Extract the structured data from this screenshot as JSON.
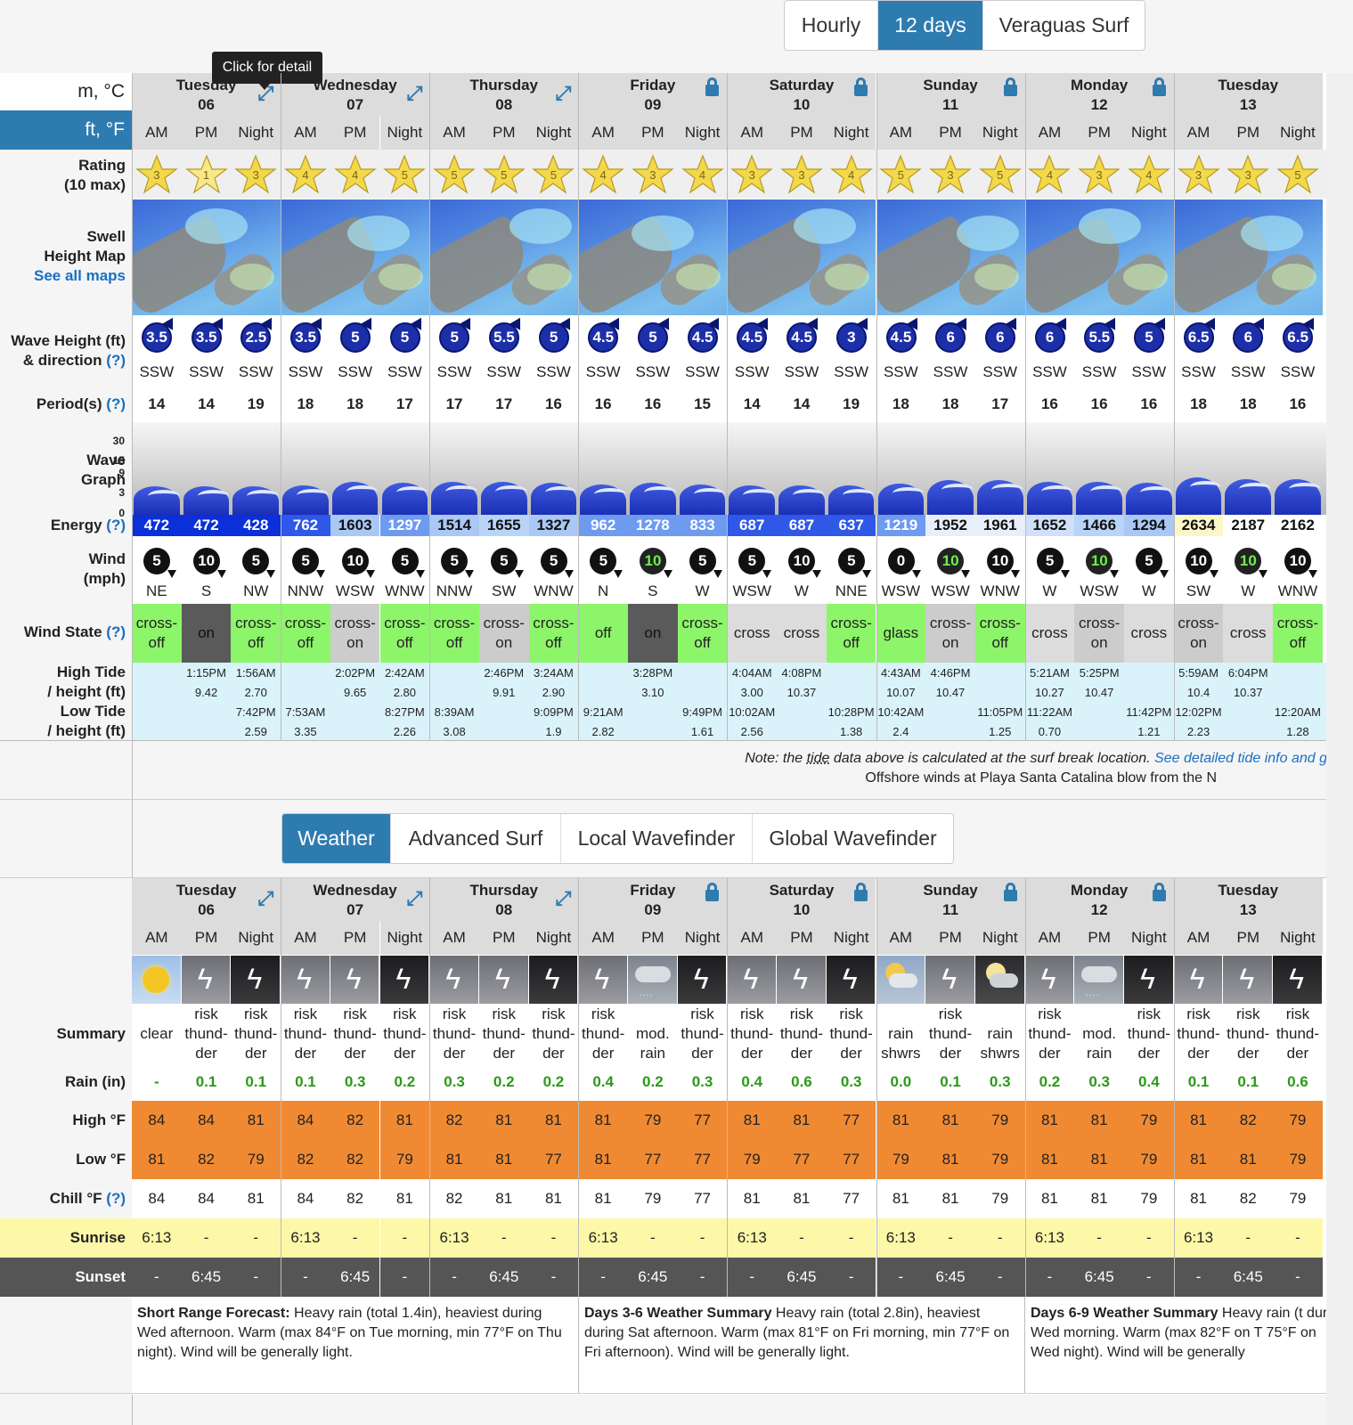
{
  "view_tabs": [
    {
      "label": "Hourly",
      "active": false
    },
    {
      "label": "12 days",
      "active": true
    },
    {
      "label": "Veraguas Surf",
      "active": false
    }
  ],
  "tooltip": "Click for detail",
  "units": {
    "metric": "m, °C",
    "imperial": "ft, °F"
  },
  "segments": [
    "AM",
    "PM",
    "Night"
  ],
  "days": [
    {
      "name": "Tuesday",
      "date": "06",
      "icon": "expand"
    },
    {
      "name": "Wednesday",
      "date": "07",
      "icon": "expand"
    },
    {
      "name": "Thursday",
      "date": "08",
      "icon": "expand"
    },
    {
      "name": "Friday",
      "date": "09",
      "icon": "lock"
    },
    {
      "name": "Saturday",
      "date": "10",
      "icon": "lock"
    },
    {
      "name": "Sunday",
      "date": "11",
      "icon": "lock"
    },
    {
      "name": "Monday",
      "date": "12",
      "icon": "lock"
    },
    {
      "name": "Tuesday",
      "date": "13",
      "icon": "none"
    }
  ],
  "labels": {
    "rating": [
      "Rating",
      "(10 max)"
    ],
    "swell_map": [
      "Swell",
      "Height Map",
      "See all maps"
    ],
    "wave_height": [
      "Wave Height (ft)",
      "& direction"
    ],
    "help": "(?)",
    "period": "Period(s)",
    "wave_graph": [
      "Wave",
      "Graph"
    ],
    "graph_ticks": [
      "30",
      "15",
      "9",
      "3",
      "0"
    ],
    "energy": "Energy",
    "wind": [
      "Wind",
      "(mph)"
    ],
    "wind_state": "Wind State",
    "tide": [
      "High Tide",
      "/ height (ft)",
      "Low Tide",
      "/ height (ft)"
    ],
    "summary": "Summary",
    "rain": "Rain (in)",
    "high": "High °F",
    "low": "Low °F",
    "chill": "Chill °F",
    "sunrise": "Sunrise",
    "sunset": "Sunset"
  },
  "ratings": [
    3,
    1,
    3,
    4,
    4,
    5,
    5,
    5,
    5,
    4,
    3,
    4,
    3,
    3,
    4,
    5,
    3,
    5,
    4,
    3,
    4,
    3,
    3,
    5
  ],
  "wave_heights": [
    "3.5",
    "3.5",
    "2.5",
    "3.5",
    "5",
    "5",
    "5",
    "5.5",
    "5",
    "4.5",
    "5",
    "4.5",
    "4.5",
    "4.5",
    "3",
    "4.5",
    "6",
    "6",
    "6",
    "5.5",
    "5",
    "6.5",
    "6",
    "6.5"
  ],
  "wave_dirs": [
    "SSW",
    "SSW",
    "SSW",
    "SSW",
    "SSW",
    "SSW",
    "SSW",
    "SSW",
    "SSW",
    "SSW",
    "SSW",
    "SSW",
    "SSW",
    "SSW",
    "SSW",
    "SSW",
    "SSW",
    "SSW",
    "SSW",
    "SSW",
    "SSW",
    "SSW",
    "SSW",
    "SSW"
  ],
  "periods": [
    "14",
    "14",
    "19",
    "18",
    "18",
    "17",
    "17",
    "17",
    "16",
    "16",
    "16",
    "15",
    "14",
    "14",
    "19",
    "18",
    "18",
    "17",
    "16",
    "16",
    "16",
    "18",
    "18",
    "16"
  ],
  "energy": [
    "472",
    "472",
    "428",
    "762",
    "1603",
    "1297",
    "1514",
    "1655",
    "1327",
    "962",
    "1278",
    "833",
    "687",
    "687",
    "637",
    "1219",
    "1952",
    "1961",
    "1652",
    "1466",
    "1294",
    "2634",
    "2187",
    "2162"
  ],
  "energy_colors": [
    "#0b2fd8",
    "#0b2fd8",
    "#0b2fd8",
    "#2f57e8",
    "#a9c8f5",
    "#6e9af0",
    "#a9c8f5",
    "#b8d4f7",
    "#a9c8f5",
    "#6e9af0",
    "#6e9af0",
    "#6e9af0",
    "#2f57e8",
    "#2f57e8",
    "#2f57e8",
    "#6e9af0",
    "#e8eefa",
    "#e8eefa",
    "#cfe0f8",
    "#b8d4f7",
    "#a9c8f5",
    "#fdf7c8",
    "#ffffff",
    "#ffffff"
  ],
  "wind_speeds": [
    "5",
    "10",
    "5",
    "5",
    "10",
    "5",
    "5",
    "5",
    "5",
    "5",
    "10",
    "5",
    "5",
    "10",
    "5",
    "0",
    "10",
    "10",
    "5",
    "10",
    "5",
    "10",
    "10",
    "10"
  ],
  "wind_dirs": [
    "NE",
    "S",
    "NW",
    "NNW",
    "WSW",
    "WNW",
    "NNW",
    "SW",
    "WNW",
    "N",
    "S",
    "W",
    "WSW",
    "W",
    "NNE",
    "WSW",
    "WSW",
    "WNW",
    "W",
    "WSW",
    "W",
    "SW",
    "W",
    "WNW"
  ],
  "wind_green": [
    false,
    false,
    false,
    false,
    false,
    false,
    false,
    false,
    false,
    false,
    true,
    false,
    false,
    false,
    false,
    false,
    true,
    false,
    false,
    true,
    false,
    false,
    true,
    false
  ],
  "wind_state": [
    {
      "text": "cross-off",
      "c": "#8df56a"
    },
    {
      "text": "on",
      "c": "#5a5a5a"
    },
    {
      "text": "cross-off",
      "c": "#8df56a"
    },
    {
      "text": "cross-off",
      "c": "#8df56a"
    },
    {
      "text": "cross-on",
      "c": "#cccccc"
    },
    {
      "text": "cross-off",
      "c": "#8df56a"
    },
    {
      "text": "cross-off",
      "c": "#8df56a"
    },
    {
      "text": "cross-on",
      "c": "#cccccc"
    },
    {
      "text": "cross-off",
      "c": "#8df56a"
    },
    {
      "text": "off",
      "c": "#8df56a"
    },
    {
      "text": "on",
      "c": "#5a5a5a"
    },
    {
      "text": "cross-off",
      "c": "#8df56a"
    },
    {
      "text": "cross",
      "c": "#dcdcdc"
    },
    {
      "text": "cross",
      "c": "#dcdcdc"
    },
    {
      "text": "cross-off",
      "c": "#8df56a"
    },
    {
      "text": "glass",
      "c": "#8df56a"
    },
    {
      "text": "cross-on",
      "c": "#cccccc"
    },
    {
      "text": "cross-off",
      "c": "#8df56a"
    },
    {
      "text": "cross",
      "c": "#dcdcdc"
    },
    {
      "text": "cross-on",
      "c": "#cccccc"
    },
    {
      "text": "cross",
      "c": "#dcdcdc"
    },
    {
      "text": "cross-on",
      "c": "#cccccc"
    },
    {
      "text": "cross",
      "c": "#dcdcdc"
    },
    {
      "text": "cross-off",
      "c": "#8df56a"
    }
  ],
  "tides": [
    {
      "high": [
        "",
        "",
        "1:15PM",
        "9.42",
        "1:56AM",
        "2.70"
      ],
      "low": [
        "",
        "",
        "",
        "",
        "7:42PM",
        "2.59"
      ]
    },
    {
      "high": [
        "",
        "",
        "2:02PM",
        "9.65",
        "2:42AM",
        "2.80"
      ],
      "low": [
        "7:53AM",
        "3.35",
        "",
        "",
        "8:27PM",
        "2.26"
      ]
    },
    {
      "high": [
        "",
        "",
        "2:46PM",
        "9.91",
        "3:24AM",
        "2.90"
      ],
      "low": [
        "8:39AM",
        "3.08",
        "",
        "",
        "9:09PM",
        "1.9"
      ]
    },
    {
      "high": [
        "",
        "",
        "3:28PM",
        "3.10",
        "",
        ""
      ],
      "low": [
        "9:21AM",
        "2.82",
        "",
        "",
        "9:49PM",
        "1.61"
      ]
    },
    {
      "high": [
        "4:04AM",
        "3.00",
        "4:08PM",
        "10.37",
        "",
        ""
      ],
      "low": [
        "10:02AM",
        "2.56",
        "",
        "",
        "10:28PM",
        "1.38"
      ]
    },
    {
      "high": [
        "4:43AM",
        "10.07",
        "4:46PM",
        "10.47",
        "",
        ""
      ],
      "low": [
        "10:42AM",
        "2.4",
        "",
        "",
        "11:05PM",
        "1.25"
      ]
    },
    {
      "high": [
        "5:21AM",
        "10.27",
        "5:25PM",
        "10.47",
        "",
        ""
      ],
      "low": [
        "11:22AM",
        "0.70",
        "",
        "",
        "11:42PM",
        "1.21"
      ]
    },
    {
      "high": [
        "5:59AM",
        "10.4",
        "6:04PM",
        "10.37",
        "",
        ""
      ],
      "low": [
        "12:02PM",
        "2.23",
        "",
        "",
        "12:20AM",
        "1.28"
      ]
    }
  ],
  "note": {
    "prefix": "Note: the ",
    "tide": "tide",
    "mid": " data above is calculated at the surf break location. ",
    "link": "See detailed tide info and g",
    "offshore": "Offshore winds at Playa Santa Catalina blow from the N"
  },
  "weather_tabs": [
    {
      "label": "Weather",
      "active": true
    },
    {
      "label": "Advanced Surf",
      "active": false
    },
    {
      "label": "Local Wavefinder",
      "active": false
    },
    {
      "label": "Global Wavefinder",
      "active": false
    }
  ],
  "weather_icons": [
    "sun",
    "storm",
    "storm-night",
    "storm",
    "storm",
    "storm-night",
    "storm",
    "storm",
    "storm-night",
    "storm",
    "rain",
    "storm-night",
    "storm",
    "storm",
    "storm-night",
    "sun-cloud",
    "storm",
    "moon-cloud",
    "storm",
    "rain",
    "storm-night",
    "storm",
    "storm",
    "storm-night"
  ],
  "summary": [
    [
      "",
      "clear",
      ""
    ],
    [
      "risk",
      "thund-",
      "der"
    ],
    [
      "risk",
      "thund-",
      "der"
    ],
    [
      "risk",
      "thund-",
      "der"
    ],
    [
      "risk",
      "thund-",
      "der"
    ],
    [
      "risk",
      "thund-",
      "der"
    ],
    [
      "risk",
      "thund-",
      "der"
    ],
    [
      "risk",
      "thund-",
      "der"
    ],
    [
      "risk",
      "thund-",
      "der"
    ],
    [
      "risk",
      "thund-",
      "der"
    ],
    [
      "",
      "mod.",
      "rain"
    ],
    [
      "risk",
      "thund-",
      "der"
    ],
    [
      "risk",
      "thund-",
      "der"
    ],
    [
      "risk",
      "thund-",
      "der"
    ],
    [
      "risk",
      "thund-",
      "der"
    ],
    [
      "",
      "rain",
      "shwrs"
    ],
    [
      "risk",
      "thund-",
      "der"
    ],
    [
      "",
      "rain",
      "shwrs"
    ],
    [
      "risk",
      "thund-",
      "der"
    ],
    [
      "",
      "mod.",
      "rain"
    ],
    [
      "risk",
      "thund-",
      "der"
    ],
    [
      "risk",
      "thund-",
      "der"
    ],
    [
      "risk",
      "thund-",
      "der"
    ],
    [
      "risk",
      "thund-",
      "der"
    ]
  ],
  "rain": [
    "-",
    "0.1",
    "0.1",
    "0.1",
    "0.3",
    "0.2",
    "0.3",
    "0.2",
    "0.2",
    "0.4",
    "0.2",
    "0.3",
    "0.4",
    "0.6",
    "0.3",
    "0.0",
    "0.1",
    "0.3",
    "0.2",
    "0.3",
    "0.4",
    "0.1",
    "0.1",
    "0.6"
  ],
  "high": [
    "84",
    "84",
    "81",
    "84",
    "82",
    "81",
    "82",
    "81",
    "81",
    "81",
    "79",
    "77",
    "81",
    "81",
    "77",
    "81",
    "81",
    "79",
    "81",
    "81",
    "79",
    "81",
    "82",
    "79"
  ],
  "low": [
    "81",
    "82",
    "79",
    "82",
    "82",
    "79",
    "81",
    "81",
    "77",
    "81",
    "77",
    "77",
    "79",
    "77",
    "77",
    "79",
    "81",
    "79",
    "81",
    "81",
    "79",
    "81",
    "81",
    "79"
  ],
  "chill": [
    "84",
    "84",
    "81",
    "84",
    "82",
    "81",
    "82",
    "81",
    "81",
    "81",
    "79",
    "77",
    "81",
    "81",
    "77",
    "81",
    "81",
    "79",
    "81",
    "81",
    "79",
    "81",
    "82",
    "79"
  ],
  "sunrise": [
    "6:13",
    "-",
    "-"
  ],
  "sunset": [
    "-",
    "6:45",
    "-"
  ],
  "forecasts": [
    {
      "title": "Short Range Forecast:",
      "text": " Heavy rain (total 1.4in), heaviest during Wed afternoon. Warm (max 84°F on Tue morning, min 77°F on Thu night). Wind will be generally light."
    },
    {
      "title": "Days 3-6 Weather Summary",
      "text": " Heavy rain (total 2.8in), heaviest during Sat afternoon. Warm (max 81°F on Fri morning, min 77°F on Fri afternoon). Wind will be generally light."
    },
    {
      "title": "Days 6-9 Weather Summary",
      "text": " Heavy rain (t during Wed morning. Warm (max 82°F on T 75°F on Wed night). Wind will be generally"
    }
  ]
}
